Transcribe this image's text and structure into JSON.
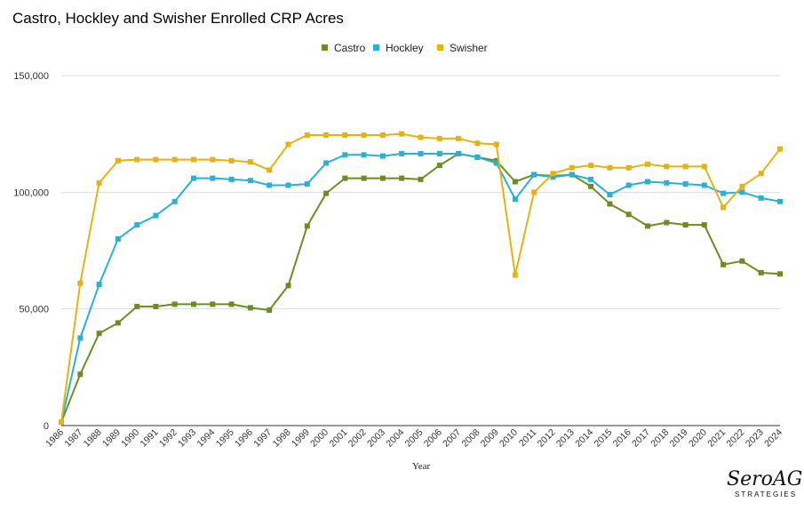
{
  "chart_data": {
    "type": "line",
    "title": "Castro, Hockley and Swisher Enrolled CRP Acres",
    "xlabel": "Year",
    "ylabel": "",
    "ylim": [
      0,
      150000
    ],
    "yticks": [
      0,
      50000,
      100000,
      150000
    ],
    "ytick_labels": [
      "0",
      "50,000",
      "100,000",
      "150,000"
    ],
    "grid": true,
    "legend_position": "top-center",
    "categories": [
      "1986",
      "1987",
      "1988",
      "1989",
      "1990",
      "1991",
      "1992",
      "1993",
      "1994",
      "1995",
      "1996",
      "1997",
      "1998",
      "1999",
      "2000",
      "2001",
      "2002",
      "2003",
      "2004",
      "2005",
      "2006",
      "2007",
      "2008",
      "2009",
      "2010",
      "2011",
      "2012",
      "2013",
      "2014",
      "2015",
      "2016",
      "2017",
      "2018",
      "2019",
      "2020",
      "2021",
      "2022",
      "2023",
      "2024"
    ],
    "series": [
      {
        "name": "Castro",
        "color": "#6b8e23",
        "values": [
          1500,
          22000,
          39500,
          44000,
          51000,
          51000,
          52000,
          52000,
          52000,
          52000,
          50500,
          49500,
          60000,
          85500,
          99500,
          106000,
          106000,
          106000,
          106000,
          105500,
          111500,
          116500,
          115000,
          113500,
          104500,
          107500,
          107000,
          107500,
          102500,
          95000,
          90500,
          85500,
          87000,
          86000,
          86000,
          69000,
          70500,
          65500,
          65000
        ]
      },
      {
        "name": "Hockley",
        "color": "#29b0d6",
        "values": [
          1500,
          37500,
          60500,
          80000,
          86000,
          90000,
          96000,
          106000,
          106000,
          105500,
          105000,
          103000,
          103000,
          103500,
          112500,
          116000,
          116000,
          115500,
          116500,
          116500,
          116500,
          116500,
          115000,
          112500,
          97000,
          107500,
          106500,
          107500,
          105500,
          99000,
          103000,
          104500,
          104000,
          103500,
          103000,
          99500,
          100000,
          97500,
          96000
        ]
      },
      {
        "name": "Swisher",
        "color": "#e4b312",
        "values": [
          1500,
          61000,
          104000,
          113500,
          114000,
          114000,
          114000,
          114000,
          114000,
          113500,
          113000,
          109500,
          120500,
          124500,
          124500,
          124500,
          124500,
          124500,
          125000,
          123500,
          123000,
          123000,
          121000,
          120500,
          64500,
          100000,
          108000,
          110500,
          111500,
          110500,
          110500,
          112000,
          111000,
          111000,
          111000,
          93500,
          102500,
          108000,
          118500
        ]
      }
    ]
  },
  "logo": {
    "main": "SeroAG",
    "sub": "STRATEGIES"
  }
}
